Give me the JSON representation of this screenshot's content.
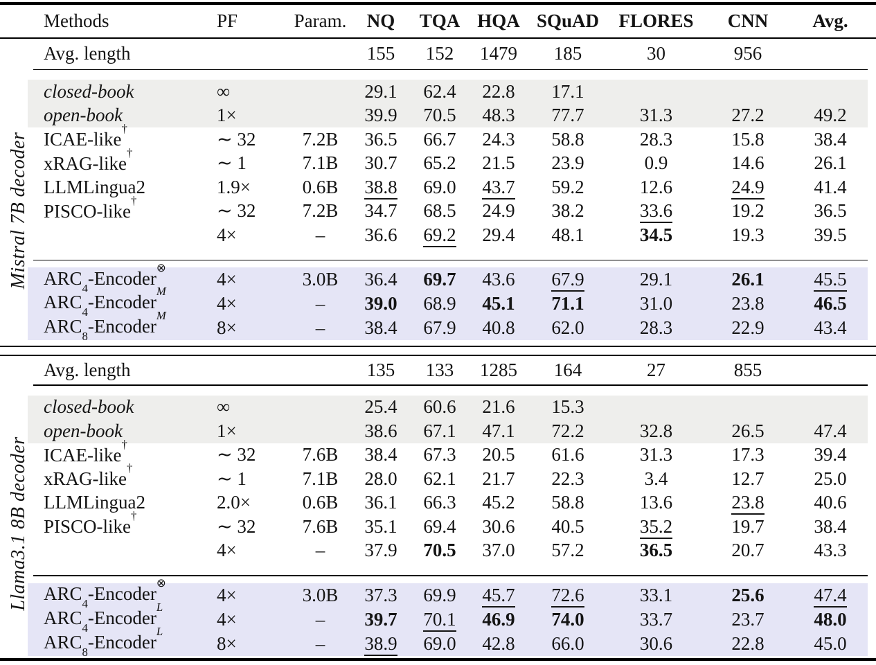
{
  "table": {
    "headers": [
      "Methods",
      "PF",
      "Param.",
      "NQ",
      "TQA",
      "HQA",
      "SQuAD",
      "FLORES",
      "CNN",
      "Avg."
    ],
    "avg_length_label": "Avg. length",
    "colors": {
      "baseline_row_bg": "#eeeeec",
      "arc_row_bg": "#e5e5f6",
      "rule": "#000000",
      "text": "#141414"
    },
    "sections": [
      {
        "decoder_label": "Mistral 7B decoder",
        "avg_lengths": [
          "155",
          "152",
          "1479",
          "185",
          "30",
          "956",
          ""
        ],
        "baseline_rows": [
          {
            "method": {
              "pre": "closed-book"
            },
            "italic": true,
            "bg": "gray",
            "pf": "∞",
            "param": "",
            "vals": [
              "29.1",
              "62.4",
              "22.8",
              "17.1",
              "",
              "",
              ""
            ],
            "bold": [],
            "ul": []
          },
          {
            "method": {
              "pre": "open-book"
            },
            "italic": true,
            "bg": "gray",
            "pf": "1×",
            "param": "",
            "vals": [
              "39.9",
              "70.5",
              "48.3",
              "77.7",
              "31.3",
              "27.2",
              "49.2"
            ],
            "bold": [],
            "ul": []
          },
          {
            "method": {
              "pre": "ICAE-like",
              "sup": "†"
            },
            "pf": "∼ 32",
            "param": "7.2B",
            "vals": [
              "36.5",
              "66.7",
              "24.3",
              "58.8",
              "28.3",
              "15.8",
              "38.4"
            ],
            "bold": [],
            "ul": []
          },
          {
            "method": {
              "pre": "xRAG-like",
              "sup": "†"
            },
            "pf": "∼ 1",
            "param": "7.1B",
            "vals": [
              "30.7",
              "65.2",
              "21.5",
              "23.9",
              "0.9",
              "14.6",
              "26.1"
            ],
            "bold": [],
            "ul": []
          },
          {
            "method": {
              "pre": "LLMLingua2"
            },
            "pf": "1.9×",
            "param": "0.6B",
            "vals": [
              "38.8",
              "69.0",
              "43.7",
              "59.2",
              "12.6",
              "24.9",
              "41.4"
            ],
            "bold": [],
            "ul": [
              0,
              2,
              5
            ]
          },
          {
            "method": {
              "pre": "PISCO-like",
              "sup": "†"
            },
            "pf": "∼ 32",
            "param": "7.2B",
            "vals": [
              "34.7",
              "68.5",
              "24.9",
              "38.2",
              "33.6",
              "19.2",
              "36.5"
            ],
            "bold": [],
            "ul": [
              4
            ]
          },
          {
            "method": {},
            "pf": "4×",
            "param": "–",
            "vals": [
              "36.6",
              "69.2",
              "29.4",
              "48.1",
              "34.5",
              "19.3",
              "39.5"
            ],
            "bold": [
              4
            ],
            "ul": [
              1
            ]
          }
        ],
        "arc_rows": [
          {
            "method": {
              "pre": "ARC",
              "sub": "4",
              "mid": "-Encoder",
              "sup": "⊗"
            },
            "bg": "lav",
            "pf": "4×",
            "param": "3.0B",
            "vals": [
              "36.4",
              "69.7",
              "43.6",
              "67.9",
              "29.1",
              "26.1",
              "45.5"
            ],
            "bold": [
              1,
              5
            ],
            "ul": [
              3,
              6
            ]
          },
          {
            "method": {
              "pre": "ARC",
              "sub": "4",
              "mid": "-Encoder",
              "sup": "M",
              "sup_italic": true
            },
            "bg": "lav",
            "pf": "4×",
            "param": "–",
            "vals": [
              "39.0",
              "68.9",
              "45.1",
              "71.1",
              "31.0",
              "23.8",
              "46.5"
            ],
            "bold": [
              0,
              2,
              3,
              6
            ],
            "ul": []
          },
          {
            "method": {
              "pre": "ARC",
              "sub": "8",
              "mid": "-Encoder",
              "sup": "M",
              "sup_italic": true
            },
            "bg": "lav",
            "pf": "8×",
            "param": "–",
            "vals": [
              "38.4",
              "67.9",
              "40.8",
              "62.0",
              "28.3",
              "22.9",
              "43.4"
            ],
            "bold": [],
            "ul": []
          }
        ]
      },
      {
        "decoder_label": "Llama3.1 8B decoder",
        "avg_lengths": [
          "135",
          "133",
          "1285",
          "164",
          "27",
          "855",
          ""
        ],
        "baseline_rows": [
          {
            "method": {
              "pre": "closed-book"
            },
            "italic": true,
            "bg": "gray",
            "pf": "∞",
            "param": "",
            "vals": [
              "25.4",
              "60.6",
              "21.6",
              "15.3",
              "",
              "",
              ""
            ],
            "bold": [],
            "ul": []
          },
          {
            "method": {
              "pre": "open-book"
            },
            "italic": true,
            "bg": "gray",
            "pf": "1×",
            "param": "",
            "vals": [
              "38.6",
              "67.1",
              "47.1",
              "72.2",
              "32.8",
              "26.5",
              "47.4"
            ],
            "bold": [],
            "ul": []
          },
          {
            "method": {
              "pre": "ICAE-like",
              "sup": "†"
            },
            "pf": "∼ 32",
            "param": "7.6B",
            "vals": [
              "38.4",
              "67.3",
              "20.5",
              "61.6",
              "31.3",
              "17.3",
              "39.4"
            ],
            "bold": [],
            "ul": []
          },
          {
            "method": {
              "pre": "xRAG-like",
              "sup": "†"
            },
            "pf": "∼ 1",
            "param": "7.1B",
            "vals": [
              "28.0",
              "62.1",
              "21.7",
              "22.3",
              "3.4",
              "12.7",
              "25.0"
            ],
            "bold": [],
            "ul": []
          },
          {
            "method": {
              "pre": "LLMLingua2"
            },
            "pf": "2.0×",
            "param": "0.6B",
            "vals": [
              "36.1",
              "66.3",
              "45.2",
              "58.8",
              "13.6",
              "23.8",
              "40.6"
            ],
            "bold": [],
            "ul": [
              5
            ]
          },
          {
            "method": {
              "pre": "PISCO-like",
              "sup": "†"
            },
            "pf": "∼ 32",
            "param": "7.6B",
            "vals": [
              "35.1",
              "69.4",
              "30.6",
              "40.5",
              "35.2",
              "19.7",
              "38.4"
            ],
            "bold": [],
            "ul": [
              4
            ]
          },
          {
            "method": {},
            "pf": "4×",
            "param": "–",
            "vals": [
              "37.9",
              "70.5",
              "37.0",
              "57.2",
              "36.5",
              "20.7",
              "43.3"
            ],
            "bold": [
              1,
              4
            ],
            "ul": []
          }
        ],
        "arc_rows": [
          {
            "method": {
              "pre": "ARC",
              "sub": "4",
              "mid": "-Encoder",
              "sup": "⊗"
            },
            "bg": "lav",
            "pf": "4×",
            "param": "3.0B",
            "vals": [
              "37.3",
              "69.9",
              "45.7",
              "72.6",
              "33.1",
              "25.6",
              "47.4"
            ],
            "bold": [
              5
            ],
            "ul": [
              2,
              3,
              6
            ]
          },
          {
            "method": {
              "pre": "ARC",
              "sub": "4",
              "mid": "-Encoder",
              "sup": "L",
              "sup_italic": true
            },
            "bg": "lav",
            "pf": "4×",
            "param": "–",
            "vals": [
              "39.7",
              "70.1",
              "46.9",
              "74.0",
              "33.7",
              "23.7",
              "48.0"
            ],
            "bold": [
              0,
              2,
              3,
              6
            ],
            "ul": [
              1
            ]
          },
          {
            "method": {
              "pre": "ARC",
              "sub": "8",
              "mid": "-Encoder",
              "sup": "L",
              "sup_italic": true
            },
            "bg": "lav",
            "pf": "8×",
            "param": "–",
            "vals": [
              "38.9",
              "69.0",
              "42.8",
              "66.0",
              "30.6",
              "22.8",
              "45.0"
            ],
            "bold": [],
            "ul": [
              0
            ]
          }
        ]
      }
    ]
  }
}
